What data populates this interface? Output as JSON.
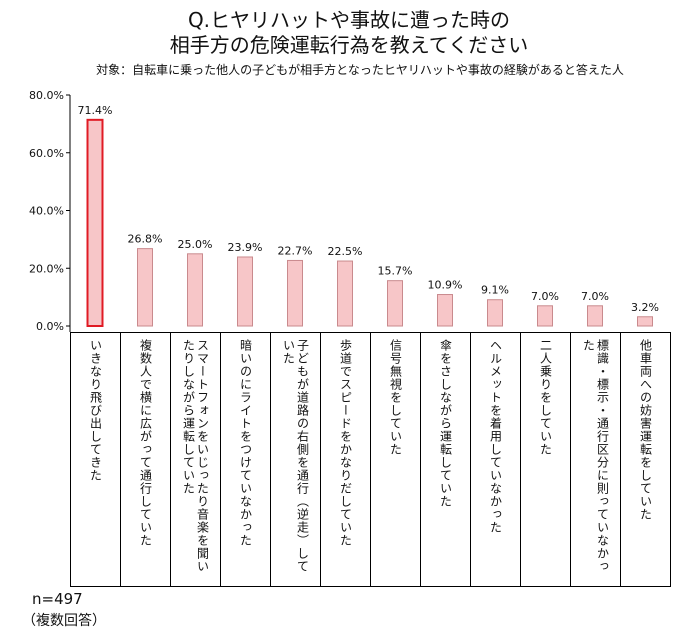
{
  "header": {
    "title_line1": "Q.ヒヤリハットや事故に遭った時の",
    "title_line2": "相手方の危険運転行為を教えてください",
    "subtitle": "対象：自転車に乗った他人の子どもが相手方となったヒヤリハットや事故の経験があると答えた人"
  },
  "footer": {
    "n": "n=497",
    "note": "（複数回答）"
  },
  "chart_data": {
    "type": "bar",
    "categories": [
      "いきなり飛び出してきた",
      "複数人で横に広がって通行していた",
      "スマートフォンをいじったり音楽を聞いたりしながら運転していた",
      "暗いのにライトをつけていなかった",
      "子どもが道路の右側を通行（逆走）していた",
      "歩道でスピードをかなりだしていた",
      "信号無視をしていた",
      "傘をさしながら運転していた",
      "ヘルメットを着用していなかった",
      "二人乗りをしていた",
      "標識・標示・通行区分に則っていなかった",
      "他車両への妨害運転をしていた"
    ],
    "values": [
      71.4,
      26.8,
      25.0,
      23.9,
      22.7,
      22.5,
      15.7,
      10.9,
      9.1,
      7.0,
      7.0,
      3.2
    ],
    "value_labels": [
      "71.4%",
      "26.8%",
      "25.0%",
      "23.9%",
      "22.7%",
      "22.5%",
      "15.7%",
      "10.9%",
      "9.1%",
      "7.0%",
      "7.0%",
      "3.2%"
    ],
    "yticks": [
      0,
      20,
      40,
      60,
      80
    ],
    "ytick_labels": [
      "0.0%",
      "20.0%",
      "40.0%",
      "60.0%",
      "80.0%"
    ],
    "ylim": [
      0,
      80
    ],
    "grid": false,
    "colors": {
      "bar_fill": "#f7c6c8",
      "bar_stroke": "#c98a8d",
      "highlight_fill": "#f7c6c8",
      "highlight_stroke": "#e01b24"
    },
    "highlight_index": 0
  }
}
